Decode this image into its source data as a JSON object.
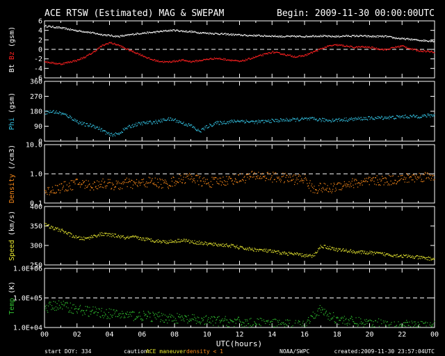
{
  "header": {
    "title": "ACE RTSW (Estimated) MAG & SWEPAM",
    "begin": "Begin: 2009-11-30 00:00:00UTC"
  },
  "footer": {
    "start_doy": "start DOY: 334",
    "caution_label": "caution:",
    "caution_maneuver": "ACE maneuver",
    "caution_density": "density < 1",
    "source": "NOAA/SWPC",
    "created": "created:2009-11-30 23:57:04UTC"
  },
  "colors": {
    "bt": "#ffffff",
    "bz": "#ff2020",
    "phi": "#33c0e0",
    "density": "#ff8c1a",
    "speed": "#e8e830",
    "temp": "#30c030",
    "axis": "#ffffff"
  },
  "chart_data": [
    {
      "id": "mag",
      "type": "scatter",
      "ylabel_parts": [
        "Bt",
        "Bz",
        "(gsm)"
      ],
      "ylim": [
        -6,
        6
      ],
      "yticks": [
        "6",
        "4",
        "2",
        "0",
        "-2",
        "-4",
        "-6"
      ],
      "ytick_values": [
        6,
        4,
        2,
        0,
        -2,
        -4,
        -6
      ],
      "dashed_lines": [
        0
      ],
      "series": [
        {
          "name": "Bt",
          "color": "bt",
          "x": [
            0,
            0.5,
            1,
            1.5,
            2,
            2.5,
            3,
            3.5,
            4,
            4.5,
            5,
            5.5,
            6,
            6.5,
            7,
            7.5,
            8,
            8.5,
            9,
            9.5,
            10,
            10.5,
            11,
            11.5,
            12,
            12.5,
            13,
            13.5,
            14,
            14.5,
            15,
            15.5,
            16,
            16.5,
            17,
            17.5,
            18,
            18.5,
            19,
            19.5,
            20,
            20.5,
            21,
            21.5,
            22,
            22.5,
            23,
            23.5,
            24
          ],
          "y": [
            5.0,
            4.8,
            4.6,
            4.3,
            4.0,
            3.8,
            3.5,
            3.2,
            3.0,
            2.8,
            3.0,
            3.3,
            3.5,
            3.6,
            3.8,
            4.0,
            4.1,
            3.9,
            3.8,
            3.6,
            3.5,
            3.4,
            3.3,
            3.2,
            3.1,
            3.0,
            3.0,
            2.9,
            2.9,
            2.8,
            2.8,
            2.8,
            2.8,
            2.9,
            2.9,
            2.8,
            2.8,
            2.9,
            2.9,
            2.9,
            2.8,
            2.8,
            2.8,
            2.5,
            2.3,
            2.2,
            2.0,
            1.9,
            1.8
          ]
        },
        {
          "name": "Bz",
          "color": "bz",
          "x": [
            0,
            0.5,
            1,
            1.5,
            2,
            2.5,
            3,
            3.5,
            4,
            4.5,
            5,
            5.5,
            6,
            6.5,
            7,
            7.5,
            8,
            8.5,
            9,
            9.5,
            10,
            10.5,
            11,
            11.5,
            12,
            12.5,
            13,
            13.5,
            14,
            14.5,
            15,
            15.5,
            16,
            16.5,
            17,
            17.5,
            18,
            18.5,
            19,
            19.5,
            20,
            20.5,
            21,
            21.5,
            22,
            22.5,
            23,
            23.5,
            24
          ],
          "y": [
            -2.5,
            -2.8,
            -3.0,
            -2.6,
            -2.2,
            -1.5,
            -0.5,
            0.8,
            1.5,
            1.0,
            0.2,
            -0.5,
            -1.2,
            -2.0,
            -2.4,
            -2.6,
            -2.4,
            -2.2,
            -2.5,
            -2.3,
            -2.0,
            -1.8,
            -2.0,
            -2.2,
            -2.5,
            -2.0,
            -1.5,
            -1.0,
            -0.5,
            -0.8,
            -1.2,
            -1.5,
            -1.2,
            -0.5,
            0.2,
            0.8,
            1.0,
            0.8,
            0.5,
            0.6,
            0.5,
            0.2,
            0.0,
            0.5,
            0.8,
            0.2,
            -0.2,
            -0.3,
            -0.5
          ]
        }
      ]
    },
    {
      "id": "phi",
      "type": "scatter",
      "ylabel_parts": [
        "Phi",
        "(gsm)"
      ],
      "ylim": [
        0,
        360
      ],
      "yticks": [
        "360",
        "270",
        "180",
        "90",
        "0"
      ],
      "ytick_values": [
        360,
        270,
        180,
        90,
        0
      ],
      "dashed_lines": [],
      "series": [
        {
          "name": "Phi",
          "color": "phi",
          "x": [
            0,
            0.5,
            1,
            1.5,
            2,
            2.5,
            3,
            3.5,
            4,
            4.5,
            5,
            5.5,
            6,
            6.5,
            7,
            7.5,
            8,
            8.5,
            9,
            9.5,
            10,
            10.5,
            11,
            11.5,
            12,
            12.5,
            13,
            13.5,
            14,
            14.5,
            15,
            15.5,
            16,
            16.5,
            17,
            17.5,
            18,
            18.5,
            19,
            19.5,
            20,
            20.5,
            21,
            21.5,
            22,
            22.5,
            23,
            23.5,
            24
          ],
          "y": [
            175,
            180,
            170,
            150,
            120,
            100,
            95,
            70,
            40,
            45,
            80,
            100,
            110,
            115,
            120,
            135,
            130,
            110,
            95,
            60,
            90,
            110,
            115,
            120,
            125,
            120,
            118,
            120,
            125,
            128,
            130,
            132,
            135,
            135,
            130,
            128,
            130,
            132,
            135,
            138,
            140,
            142,
            145,
            145,
            150,
            150,
            152,
            155,
            160
          ]
        }
      ]
    },
    {
      "id": "density",
      "type": "scatter",
      "ylabel_parts": [
        "Density",
        "(/cm3)"
      ],
      "ylim": [
        0.1,
        10
      ],
      "log": true,
      "yticks": [
        "10.0",
        "1.0",
        "0.1"
      ],
      "ytick_values": [
        10,
        1,
        0.1
      ],
      "dashed_lines": [
        1
      ],
      "series": [
        {
          "name": "Density",
          "color": "density",
          "x": [
            0,
            0.5,
            1,
            1.5,
            2,
            2.5,
            3,
            3.5,
            4,
            4.5,
            5,
            5.5,
            6,
            6.5,
            7,
            7.5,
            8,
            8.5,
            9,
            9.5,
            10,
            10.5,
            11,
            11.5,
            12,
            12.5,
            13,
            13.5,
            14,
            14.5,
            15,
            15.5,
            16,
            16.5,
            17,
            17.5,
            18,
            18.5,
            19,
            19.5,
            20,
            20.5,
            21,
            21.5,
            22,
            22.5,
            23,
            23.5,
            24
          ],
          "y": [
            0.25,
            0.3,
            0.35,
            0.4,
            0.5,
            0.45,
            0.4,
            0.5,
            0.45,
            0.4,
            0.5,
            0.45,
            0.5,
            0.55,
            0.5,
            0.45,
            0.6,
            0.7,
            0.8,
            0.6,
            0.5,
            0.55,
            0.6,
            0.65,
            0.7,
            0.8,
            0.9,
            0.85,
            0.8,
            0.75,
            0.7,
            0.65,
            0.7,
            0.3,
            0.35,
            0.3,
            0.4,
            0.45,
            0.5,
            0.5,
            0.55,
            0.6,
            0.6,
            0.65,
            0.7,
            0.75,
            0.8,
            0.85,
            0.9
          ]
        }
      ]
    },
    {
      "id": "speed",
      "type": "scatter",
      "ylabel_parts": [
        "Speed",
        "(km/s)"
      ],
      "ylim": [
        250,
        400
      ],
      "yticks": [
        "400",
        "350",
        "300",
        "250"
      ],
      "ytick_values": [
        400,
        350,
        300,
        250
      ],
      "dashed_lines": [],
      "series": [
        {
          "name": "Speed",
          "color": "speed",
          "x": [
            0,
            0.5,
            1,
            1.5,
            2,
            2.5,
            3,
            3.5,
            4,
            4.5,
            5,
            5.5,
            6,
            6.5,
            7,
            7.5,
            8,
            8.5,
            9,
            9.5,
            10,
            10.5,
            11,
            11.5,
            12,
            12.5,
            13,
            13.5,
            14,
            14.5,
            15,
            15.5,
            16,
            16.5,
            17,
            17.5,
            18,
            18.5,
            19,
            19.5,
            20,
            20.5,
            21,
            21.5,
            22,
            22.5,
            23,
            23.5,
            24
          ],
          "y": [
            355,
            345,
            340,
            330,
            320,
            318,
            325,
            330,
            328,
            325,
            320,
            322,
            318,
            315,
            312,
            310,
            312,
            315,
            310,
            308,
            305,
            303,
            302,
            300,
            295,
            292,
            290,
            288,
            285,
            282,
            280,
            278,
            275,
            273,
            300,
            295,
            290,
            288,
            285,
            283,
            282,
            280,
            278,
            276,
            274,
            272,
            270,
            268,
            266
          ]
        }
      ]
    },
    {
      "id": "temp",
      "type": "scatter",
      "ylabel_parts": [
        "Temp",
        "(K)"
      ],
      "ylim": [
        10000,
        1000000
      ],
      "log": true,
      "yticks": [
        "1.0E+06",
        "1.0E+05",
        "1.0E+04"
      ],
      "ytick_values": [
        1000000,
        100000,
        10000
      ],
      "dashed_lines": [
        100000
      ],
      "series": [
        {
          "name": "Temp",
          "color": "temp",
          "x": [
            0,
            0.5,
            1,
            1.5,
            2,
            2.5,
            3,
            3.5,
            4,
            4.5,
            5,
            5.5,
            6,
            6.5,
            7,
            7.5,
            8,
            8.5,
            9,
            9.5,
            10,
            10.5,
            11,
            11.5,
            12,
            12.5,
            13,
            13.5,
            14,
            14.5,
            15,
            15.5,
            16,
            16.5,
            17,
            17.5,
            18,
            18.5,
            19,
            19.5,
            20,
            20.5,
            21,
            21.5,
            22,
            22.5,
            23,
            23.5,
            24
          ],
          "y": [
            45000,
            55000,
            60000,
            50000,
            42000,
            38000,
            35000,
            32000,
            30000,
            28000,
            27000,
            26000,
            25000,
            24000,
            23000,
            22000,
            21000,
            20000,
            19000,
            18000,
            17500,
            17000,
            16500,
            16000,
            15500,
            15000,
            14500,
            14000,
            13500,
            13000,
            12800,
            12500,
            12200,
            30000,
            40000,
            25000,
            20000,
            18000,
            16000,
            15000,
            14500,
            14000,
            13500,
            13000,
            12500,
            12000,
            11800,
            11500,
            11200
          ]
        }
      ]
    }
  ],
  "xaxis": {
    "label": "UTC(hours)",
    "ticks": [
      "00",
      "02",
      "04",
      "06",
      "08",
      "10",
      "12",
      "14",
      "16",
      "18",
      "20",
      "22",
      "00"
    ],
    "range": [
      0,
      24
    ]
  }
}
